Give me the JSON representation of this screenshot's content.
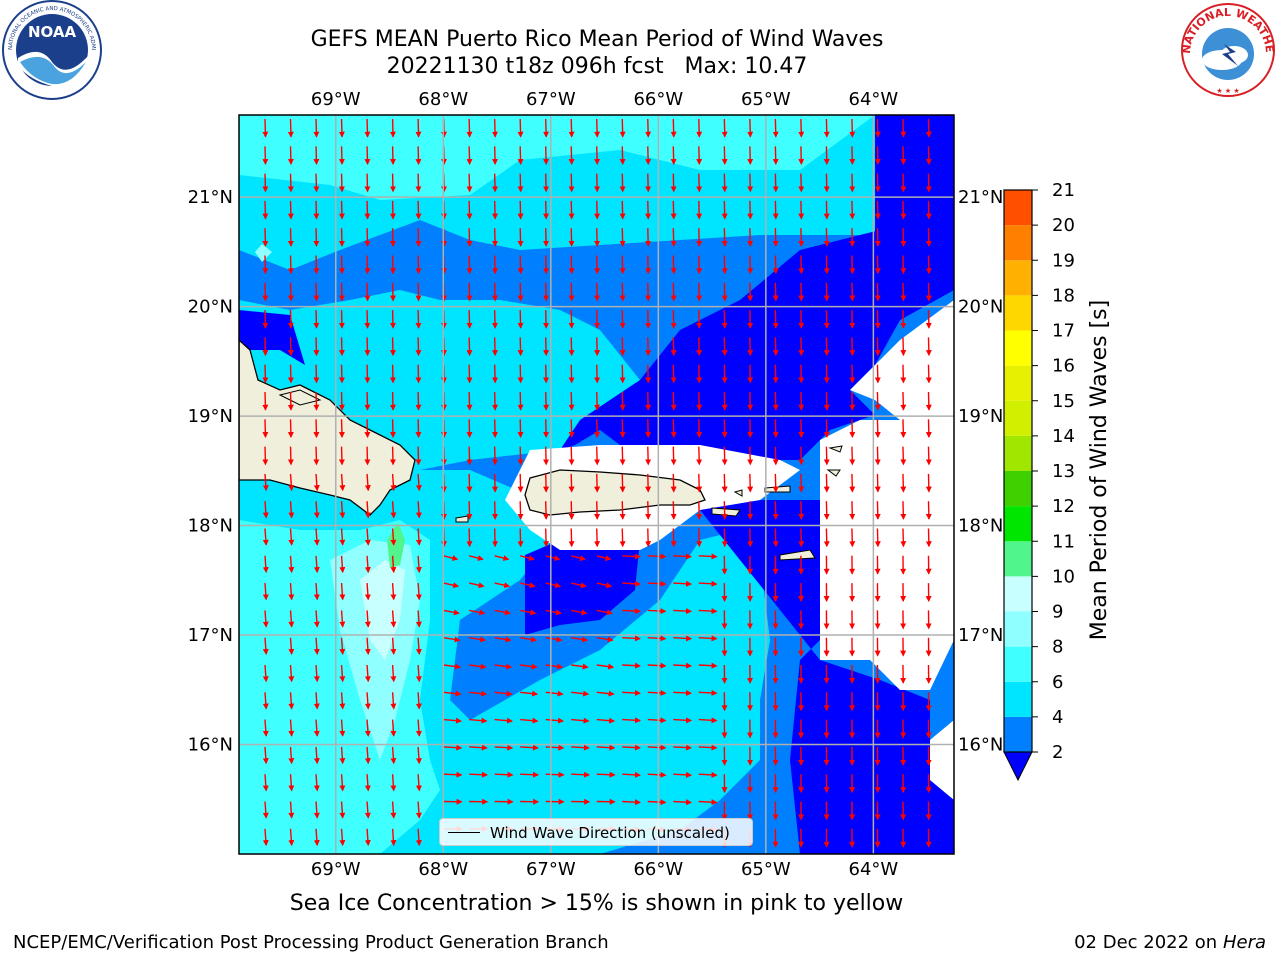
{
  "title": {
    "line1": "GEFS MEAN Puerto Rico Mean Period of Wind Waves",
    "line2": "20221130 t18z 096h fcst   Max: 10.47"
  },
  "logos": {
    "left": "NOAA",
    "right": "NATIONAL WEATHER SERVICE"
  },
  "map": {
    "lon_range": [
      -69.9,
      -63.25
    ],
    "lat_range": [
      15.0,
      21.75
    ],
    "lon_ticks": [
      "69°W",
      "68°W",
      "67°W",
      "66°W",
      "65°W",
      "64°W"
    ],
    "lat_ticks": [
      "21°N",
      "20°N",
      "19°N",
      "18°N",
      "17°N",
      "16°N"
    ],
    "grid": true,
    "legend": {
      "label": "Wind Wave Direction (unscaled)",
      "position": "bottom-center"
    },
    "arrow_color": "#ff0000",
    "land_color": "#efefdb"
  },
  "colorbar": {
    "label": "Mean Period of Wind Waves [s]",
    "ticks": [
      "2",
      "4",
      "6",
      "8",
      "9",
      "10",
      "11",
      "12",
      "13",
      "14",
      "15",
      "16",
      "17",
      "18",
      "19",
      "20",
      "21"
    ],
    "colors": [
      "#0080ff",
      "#00e5ff",
      "#40ffff",
      "#90ffff",
      "#c8ffff",
      "#50f58c",
      "#00e600",
      "#40d000",
      "#a0e600",
      "#d0f000",
      "#e6f000",
      "#ffff00",
      "#ffd700",
      "#ffb000",
      "#ff8000",
      "#ff5000",
      "#ff1400"
    ],
    "extend_min_color": "#0000ff"
  },
  "ice_note": "Sea Ice Concentration > 15% is shown in pink to yellow",
  "footer": {
    "left": "NCEP/EMC/Verification Post Processing Product Generation Branch",
    "date": "02 Dec 2022 on",
    "host": "Hera"
  }
}
